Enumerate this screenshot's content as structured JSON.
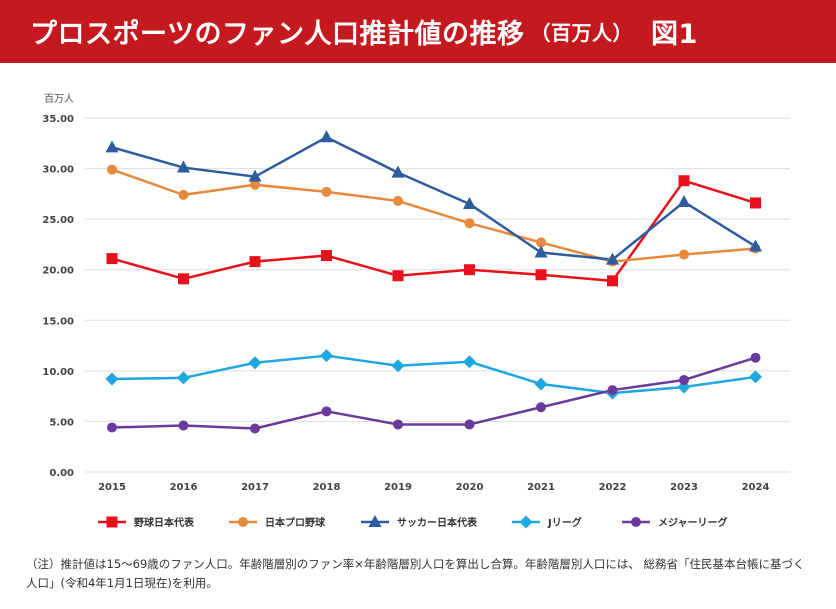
{
  "header": {
    "title": "プロスポーツのファン人口推計値の推移",
    "subtitle": "（百万人）",
    "figure_label": "図1"
  },
  "colors": {
    "banner": "#c4191f",
    "grid": "#dddddd"
  },
  "note": "（注）推計値は15〜69歳のファン人口。年齢階層別のファン率×年齢階層別人口を算出し合算。年齢階層別人口には、 総務省「住民基本台帳に基づく人口」(令和4年1月1日現在)を利用。",
  "chart_data": {
    "type": "line",
    "ylabel": "百万人",
    "ylim": [
      0,
      35
    ],
    "yticks": [
      "0.00",
      "5.00",
      "10.00",
      "15.00",
      "20.00",
      "25.00",
      "30.00",
      "35.00"
    ],
    "categories": [
      "2015",
      "2016",
      "2017",
      "2018",
      "2019",
      "2020",
      "2021",
      "2022",
      "2023",
      "2024"
    ],
    "grid": true,
    "legend_position": "bottom",
    "series": [
      {
        "name": "野球日本代表",
        "color": "#e8101a",
        "marker": "square",
        "values": [
          21.1,
          19.1,
          20.8,
          21.4,
          19.4,
          20.0,
          19.5,
          18.9,
          28.8,
          26.6
        ]
      },
      {
        "name": "日本プロ野球",
        "color": "#e58a3c",
        "marker": "circle",
        "values": [
          29.9,
          27.4,
          28.4,
          27.7,
          26.8,
          24.6,
          22.7,
          20.8,
          21.5,
          22.1
        ]
      },
      {
        "name": "サッカー日本代表",
        "color": "#2e5c9e",
        "marker": "triangle",
        "values": [
          32.1,
          30.1,
          29.2,
          33.1,
          29.6,
          26.5,
          21.7,
          21.0,
          26.7,
          22.3
        ]
      },
      {
        "name": "Jリーグ",
        "color": "#1ea7e0",
        "marker": "diamond",
        "values": [
          9.2,
          9.3,
          10.8,
          11.5,
          10.5,
          10.9,
          8.7,
          7.8,
          8.4,
          9.4
        ]
      },
      {
        "name": "メジャーリーグ",
        "color": "#6a3a9a",
        "marker": "circle",
        "values": [
          4.4,
          4.6,
          4.3,
          6.0,
          4.7,
          4.7,
          6.4,
          8.1,
          9.1,
          11.3
        ]
      }
    ]
  }
}
